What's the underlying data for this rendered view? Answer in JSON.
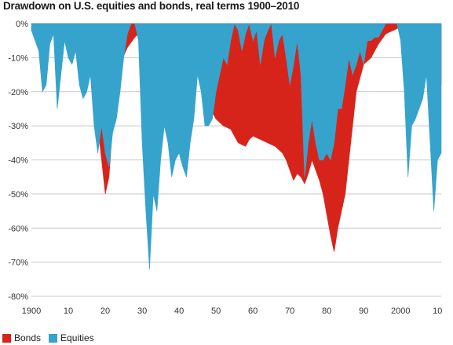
{
  "chart_data": {
    "type": "area",
    "title": "Drawdown on U.S. equities and bonds, real terms 1900–2010",
    "xlabel": "",
    "ylabel": "",
    "xlim": [
      1900,
      2011
    ],
    "ylim": [
      -80,
      0
    ],
    "grid": true,
    "legend_position": "bottom-left",
    "x_tick_labels": [
      "1900",
      "10",
      "20",
      "30",
      "40",
      "50",
      "60",
      "70",
      "80",
      "90",
      "2000",
      "10"
    ],
    "y_tick_labels": [
      "0%",
      "-10%",
      "-20%",
      "-30%",
      "-40%",
      "-50%",
      "-60%",
      "-70%",
      "-80%"
    ],
    "series": [
      {
        "name": "Bonds",
        "color": "#d7241b",
        "x": [
          1900,
          1902,
          1905,
          1908,
          1910,
          1912,
          1914,
          1915,
          1916,
          1917,
          1918,
          1919,
          1920,
          1921,
          1922,
          1924,
          1926,
          1928,
          1930,
          1931,
          1932,
          1933,
          1935,
          1938,
          1940,
          1942,
          1944,
          1946,
          1947,
          1948,
          1949,
          1950,
          1951,
          1952,
          1954,
          1955,
          1956,
          1958,
          1959,
          1960,
          1962,
          1964,
          1966,
          1968,
          1969,
          1970,
          1971,
          1972,
          1973,
          1974,
          1975,
          1976,
          1977,
          1978,
          1979,
          1980,
          1981,
          1982,
          1983,
          1984,
          1985,
          1986,
          1987,
          1988,
          1990,
          1992,
          1994,
          1996,
          1998,
          2000,
          2002,
          2004,
          2006,
          2008,
          2009,
          2010,
          2011
        ],
        "values": [
          0,
          -2,
          -3,
          -4,
          -4,
          -6,
          -8,
          -10,
          -14,
          -20,
          -30,
          -40,
          -50,
          -45,
          -30,
          -12,
          -7,
          -4,
          -2,
          0,
          -1,
          -2,
          -3,
          -3,
          -4,
          -6,
          -10,
          -12,
          -16,
          -22,
          -26,
          -28,
          -29,
          -30,
          -31,
          -33,
          -35,
          -36,
          -34,
          -33,
          -34,
          -35,
          -36,
          -38,
          -40,
          -43,
          -46,
          -44,
          -45,
          -47,
          -44,
          -40,
          -43,
          -46,
          -50,
          -56,
          -62,
          -67,
          -60,
          -55,
          -50,
          -40,
          -30,
          -20,
          -12,
          -10,
          -6,
          -3,
          -2,
          -1,
          0,
          -1,
          -2,
          -3,
          -5,
          -12,
          -18
        ]
      },
      {
        "name": "Equities",
        "color": "#36a3cc",
        "x": [
          1900,
          1901,
          1902,
          1903,
          1904,
          1905,
          1906,
          1907,
          1908,
          1909,
          1910,
          1911,
          1912,
          1913,
          1914,
          1915,
          1916,
          1917,
          1918,
          1919,
          1920,
          1921,
          1922,
          1923,
          1924,
          1925,
          1926,
          1927,
          1928,
          1929,
          1930,
          1931,
          1932,
          1933,
          1934,
          1935,
          1936,
          1937,
          1938,
          1939,
          1940,
          1941,
          1942,
          1943,
          1944,
          1945,
          1946,
          1947,
          1948,
          1949,
          1950,
          1951,
          1952,
          1953,
          1954,
          1955,
          1956,
          1957,
          1958,
          1959,
          1960,
          1961,
          1962,
          1963,
          1964,
          1965,
          1966,
          1967,
          1968,
          1969,
          1970,
          1971,
          1972,
          1973,
          1974,
          1975,
          1976,
          1977,
          1978,
          1979,
          1980,
          1981,
          1982,
          1983,
          1984,
          1985,
          1986,
          1987,
          1988,
          1989,
          1990,
          1991,
          1992,
          1993,
          1994,
          1995,
          1996,
          1997,
          1998,
          1999,
          2000,
          2001,
          2002,
          2003,
          2004,
          2005,
          2006,
          2007,
          2008,
          2009,
          2010,
          2011
        ],
        "values": [
          -2,
          -5,
          -8,
          -20,
          -18,
          -6,
          -3,
          -25,
          -15,
          -5,
          -10,
          -12,
          -8,
          -18,
          -22,
          -20,
          -15,
          -30,
          -38,
          -30,
          -38,
          -42,
          -32,
          -28,
          -20,
          -10,
          -3,
          0,
          0,
          -5,
          -35,
          -55,
          -72,
          -50,
          -55,
          -40,
          -30,
          -35,
          -45,
          -40,
          -38,
          -42,
          -45,
          -35,
          -28,
          -15,
          -20,
          -30,
          -30,
          -28,
          -20,
          -15,
          -10,
          -12,
          -5,
          0,
          -2,
          -8,
          -3,
          0,
          -5,
          -2,
          -12,
          -5,
          -2,
          0,
          -10,
          -5,
          -3,
          -10,
          -18,
          -12,
          -5,
          -15,
          -45,
          -35,
          -28,
          -35,
          -40,
          -40,
          -38,
          -40,
          -35,
          -25,
          -25,
          -18,
          -10,
          -15,
          -12,
          -8,
          -12,
          -5,
          -5,
          -4,
          -4,
          -2,
          0,
          0,
          0,
          0,
          -5,
          -20,
          -45,
          -30,
          -28,
          -25,
          -22,
          -15,
          -35,
          -55,
          -40,
          -38
        ]
      }
    ]
  },
  "legend": {
    "bonds_label": "Bonds",
    "equities_label": "Equities"
  }
}
